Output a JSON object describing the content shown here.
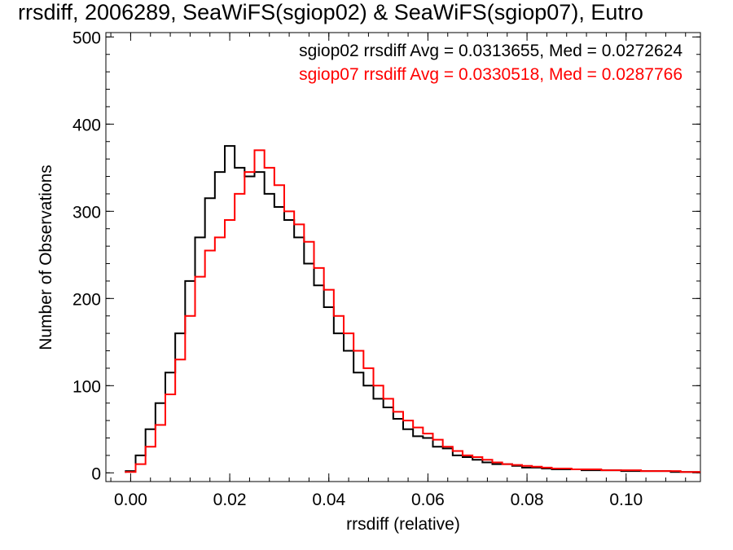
{
  "chart_data": {
    "type": "histogram",
    "title": "rrsdiff, 2006289, SeaWiFS(sgiop02) & SeaWiFS(sgiop07), Eutro",
    "xlabel": "rrsdiff (relative)",
    "ylabel": "Number of Observations",
    "xlim": [
      -0.005,
      0.115
    ],
    "ylim": [
      -10,
      505
    ],
    "xticks": [
      0.0,
      0.02,
      0.04,
      0.06,
      0.08,
      0.1
    ],
    "xtick_labels": [
      "0.00",
      "0.02",
      "0.04",
      "0.06",
      "0.08",
      "0.10"
    ],
    "yticks": [
      0,
      100,
      200,
      300,
      400,
      500
    ],
    "ytick_labels": [
      "0",
      "100",
      "200",
      "300",
      "400",
      "500"
    ],
    "grid": false,
    "legend_position": "top-right",
    "series": [
      {
        "name": "sgiop02",
        "color": "#000000",
        "annotation": "sgiop02 rrsdiff Avg = 0.0313655, Med = 0.0272624",
        "x": [
          0.0,
          0.002,
          0.004,
          0.006,
          0.008,
          0.01,
          0.012,
          0.014,
          0.016,
          0.018,
          0.02,
          0.022,
          0.024,
          0.026,
          0.028,
          0.03,
          0.032,
          0.034,
          0.036,
          0.038,
          0.04,
          0.042,
          0.044,
          0.046,
          0.048,
          0.05,
          0.052,
          0.054,
          0.056,
          0.058,
          0.06,
          0.062,
          0.064,
          0.066,
          0.068,
          0.07,
          0.072,
          0.074,
          0.076,
          0.078,
          0.08,
          0.082,
          0.084,
          0.086,
          0.088,
          0.09,
          0.092,
          0.094,
          0.096,
          0.098,
          0.1,
          0.102,
          0.104,
          0.106,
          0.108,
          0.11,
          0.112,
          0.114
        ],
        "y": [
          2,
          20,
          50,
          80,
          115,
          160,
          220,
          270,
          315,
          345,
          375,
          350,
          340,
          345,
          320,
          305,
          290,
          270,
          240,
          215,
          190,
          160,
          140,
          115,
          100,
          85,
          75,
          62,
          50,
          42,
          40,
          30,
          28,
          20,
          18,
          15,
          12,
          10,
          10,
          8,
          6,
          6,
          5,
          4,
          4,
          4,
          3,
          3,
          3,
          3,
          2,
          2,
          2,
          2,
          2,
          1,
          1,
          1
        ]
      },
      {
        "name": "sgiop07",
        "color": "#ff0000",
        "annotation": "sgiop07 rrsdiff Avg = 0.0330518, Med = 0.0287766",
        "x": [
          0.0,
          0.002,
          0.004,
          0.006,
          0.008,
          0.01,
          0.012,
          0.014,
          0.016,
          0.018,
          0.02,
          0.022,
          0.024,
          0.026,
          0.028,
          0.03,
          0.032,
          0.034,
          0.036,
          0.038,
          0.04,
          0.042,
          0.044,
          0.046,
          0.048,
          0.05,
          0.052,
          0.054,
          0.056,
          0.058,
          0.06,
          0.062,
          0.064,
          0.066,
          0.068,
          0.07,
          0.072,
          0.074,
          0.076,
          0.078,
          0.08,
          0.082,
          0.084,
          0.086,
          0.088,
          0.09,
          0.092,
          0.094,
          0.096,
          0.098,
          0.1,
          0.102,
          0.104,
          0.106,
          0.108,
          0.11,
          0.112,
          0.114
        ],
        "y": [
          1,
          10,
          30,
          55,
          90,
          130,
          180,
          225,
          255,
          270,
          290,
          320,
          345,
          370,
          350,
          330,
          300,
          285,
          265,
          235,
          210,
          180,
          160,
          140,
          120,
          100,
          85,
          70,
          60,
          52,
          45,
          38,
          30,
          25,
          20,
          18,
          15,
          12,
          10,
          9,
          8,
          7,
          6,
          5,
          5,
          4,
          4,
          4,
          3,
          3,
          3,
          3,
          2,
          2,
          2,
          2,
          1,
          1
        ]
      }
    ]
  }
}
